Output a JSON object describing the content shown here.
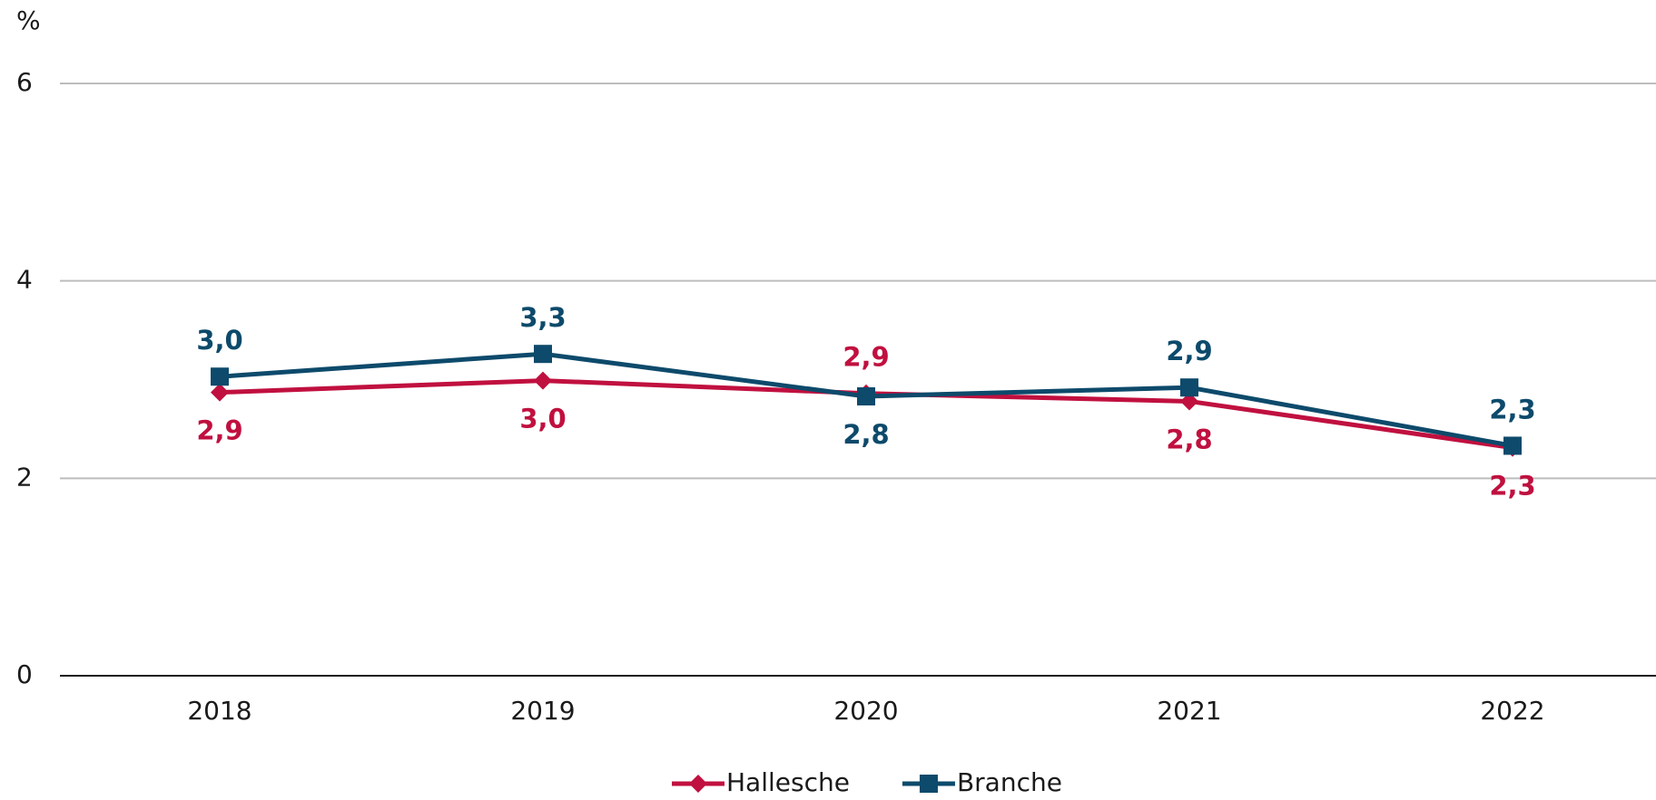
{
  "chart_data": {
    "type": "line",
    "y_label": "%",
    "categories": [
      "2018",
      "2019",
      "2020",
      "2021",
      "2022"
    ],
    "series": [
      {
        "name": "Hallesche",
        "color": "#c0103f",
        "marker": "diamond",
        "values": [
          2.87,
          2.99,
          2.86,
          2.78,
          2.31
        ],
        "value_labels": [
          "2,9",
          "3,0",
          "2,9",
          "2,8",
          "2,3"
        ]
      },
      {
        "name": "Branche",
        "color": "#0d4a6b",
        "marker": "square",
        "values": [
          3.03,
          3.26,
          2.83,
          2.92,
          2.33
        ],
        "value_labels": [
          "3,0",
          "3,3",
          "2,8",
          "2,9",
          "2,3"
        ]
      }
    ],
    "ylim": [
      0,
      6
    ],
    "yticks": [
      0,
      2,
      4,
      6
    ],
    "grid": true,
    "legend": "bottom"
  }
}
